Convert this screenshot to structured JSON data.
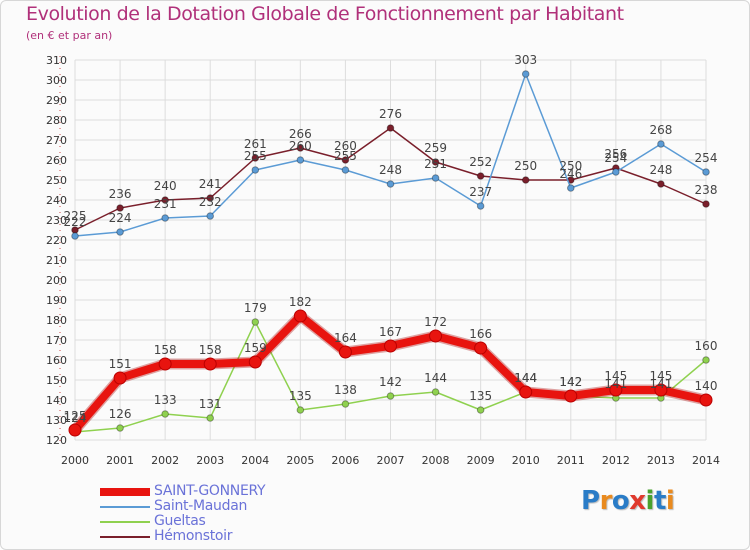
{
  "header": {
    "title": "Evolution de la Dotation Globale de Fonctionnement par Habitant",
    "subtitle": "(en € et par an)"
  },
  "logo": {
    "text": "Proxiti",
    "letters": [
      "P",
      "r",
      "o",
      "x",
      "i",
      "t",
      "i"
    ],
    "letter_colors": [
      "#2a7cc7",
      "#e98a1e",
      "#2a7cc7",
      "#e03a2e",
      "#4aa12e",
      "#2a7cc7",
      "#e98a1e"
    ]
  },
  "colors": {
    "title": "#b0307a",
    "axis_labels": "#333333",
    "grid": "#dddddd",
    "legend_text": "#6a72d8"
  },
  "chart_data": {
    "type": "line",
    "title": "Evolution de la Dotation Globale de Fonctionnement par Habitant",
    "subtitle": "(en € et par an)",
    "x": [
      "2000",
      "2001",
      "2002",
      "2003",
      "2004",
      "2005",
      "2006",
      "2007",
      "2008",
      "2009",
      "2010",
      "2011",
      "2012",
      "2013",
      "2014"
    ],
    "ylim": [
      120,
      310
    ],
    "yticks": [
      120,
      130,
      140,
      150,
      160,
      170,
      180,
      190,
      200,
      210,
      220,
      230,
      240,
      250,
      260,
      270,
      280,
      290,
      300,
      310
    ],
    "grid": true,
    "legend_position": "bottom-left",
    "series": [
      {
        "name": "Hémonstoir",
        "color": "#7a1f2b",
        "emphasis": false,
        "values": [
          225,
          236,
          240,
          241,
          261,
          266,
          260,
          276,
          259,
          252,
          250,
          250,
          256,
          248,
          238
        ],
        "labels": [
          "225",
          "236",
          "240",
          "241",
          "261",
          "266",
          "260",
          "276",
          "259",
          "252",
          "250",
          "250",
          "256",
          "248",
          "238"
        ]
      },
      {
        "name": "Saint-Maudan",
        "color": "#5b9bd5",
        "emphasis": false,
        "values": [
          222,
          224,
          231,
          232,
          255,
          260,
          255,
          248,
          251,
          237,
          303,
          246,
          254,
          268,
          254
        ],
        "labels": [
          "222",
          "224",
          "231",
          "232",
          "255",
          "260",
          "255",
          "248",
          "251",
          "237",
          "303",
          "246",
          "254",
          "268",
          "254"
        ]
      },
      {
        "name": "Gueltas",
        "color": "#8fd14f",
        "emphasis": false,
        "values": [
          124,
          126,
          133,
          131,
          179,
          135,
          138,
          142,
          144,
          135,
          144,
          142,
          141,
          141,
          160
        ],
        "labels": [
          "124",
          "126",
          "133",
          "131",
          "179",
          "135",
          "138",
          "142",
          "144",
          "135",
          "144",
          "142",
          "141",
          "141",
          "160"
        ]
      },
      {
        "name": "SAINT-GONNERY",
        "color": "#e8140f",
        "emphasis": true,
        "values": [
          125,
          151,
          158,
          158,
          159,
          182,
          164,
          167,
          172,
          166,
          144,
          142,
          145,
          145,
          140
        ],
        "labels": [
          "125",
          "151",
          "158",
          "158",
          "159",
          "182",
          "164",
          "167",
          "172",
          "166",
          "144",
          "142",
          "145",
          "145",
          "140"
        ]
      }
    ],
    "legend_order": [
      "SAINT-GONNERY",
      "Saint-Maudan",
      "Gueltas",
      "Hémonstoir"
    ]
  }
}
